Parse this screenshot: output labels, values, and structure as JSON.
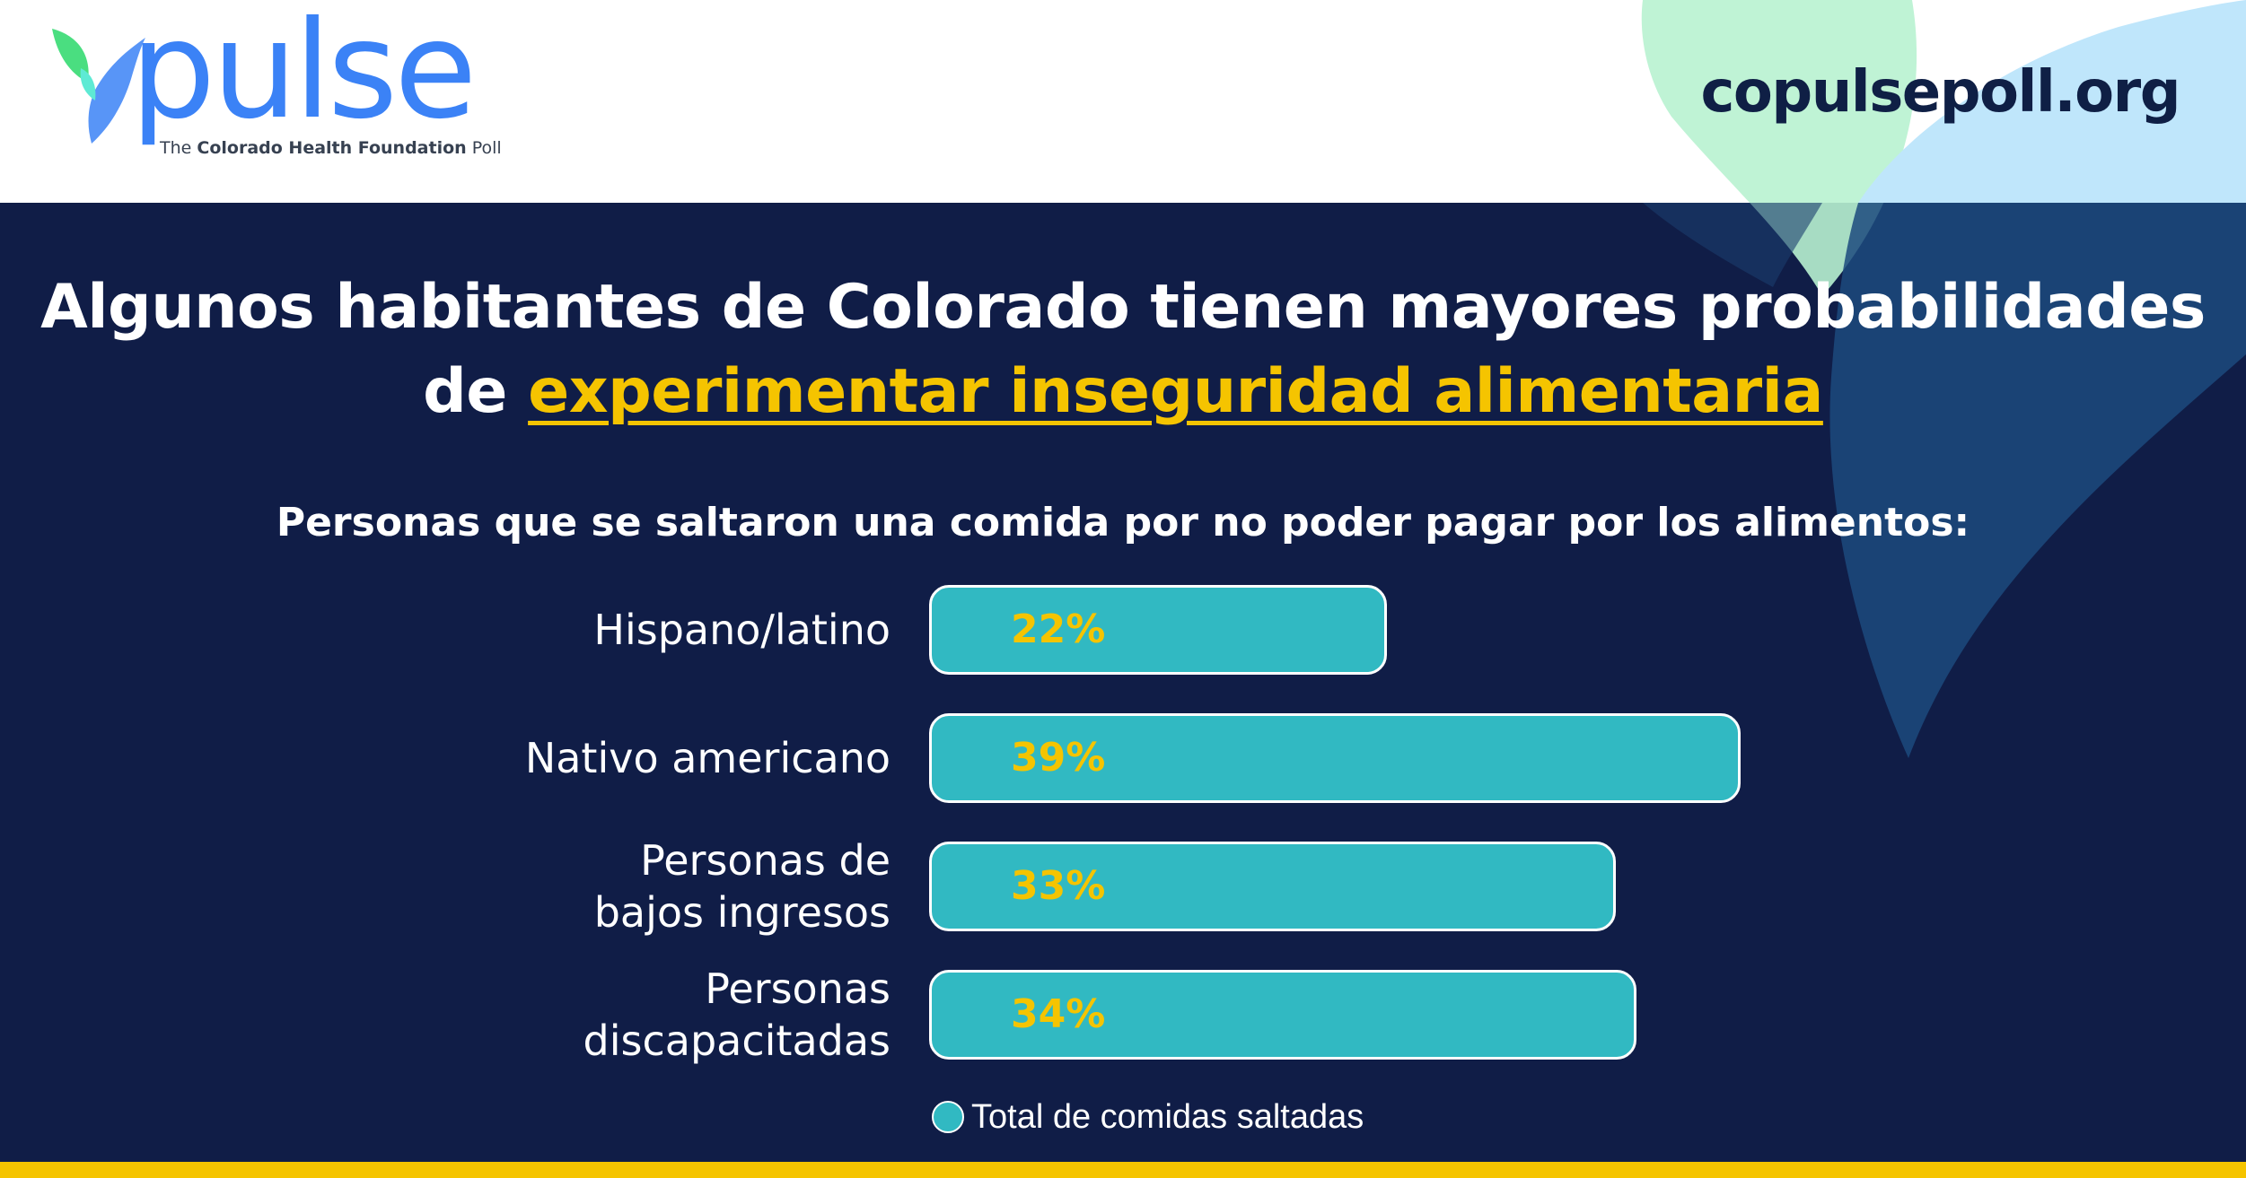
{
  "header": {
    "logo_word": "pulse",
    "logo_tagline_prefix": "The ",
    "logo_tagline_bold": "Colorado Health Foundation",
    "logo_tagline_suffix": " Poll",
    "site_url": "copulsepoll.org"
  },
  "headline": {
    "line1": "Algunos habitantes de Colorado tienen mayores probabilidades",
    "line2_prefix": "de ",
    "line2_highlight": "experimentar inseguridad alimentaria"
  },
  "colors": {
    "background": "#101d47",
    "bar": "#31b9c2",
    "value_text": "#f5c400",
    "accent_bar": "#f5c400",
    "brand_blue": "#3b82f6"
  },
  "chart_data": {
    "type": "bar",
    "orientation": "horizontal",
    "title": "Personas que se saltaron una comida por no poder pagar por los alimentos:",
    "categories": [
      [
        "Hispano/latino"
      ],
      [
        "Nativo americano"
      ],
      [
        "Personas de",
        "bajos ingresos"
      ],
      [
        "Personas",
        "discapacitadas"
      ]
    ],
    "series": [
      {
        "name": "Total de comidas saltadas",
        "values": [
          22,
          39,
          33,
          34
        ],
        "value_labels": [
          "22%",
          "39%",
          "33%",
          "34%"
        ]
      }
    ],
    "unit": "%",
    "legend_position": "bottom"
  }
}
